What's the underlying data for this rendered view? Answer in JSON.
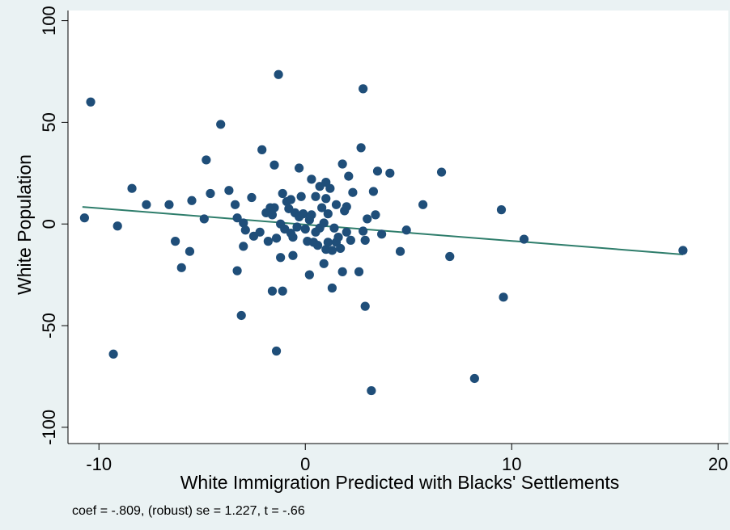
{
  "chart_data": {
    "type": "scatter",
    "xlabel": "White Immigration Predicted with Blacks' Settlements",
    "ylabel": "White Population",
    "xlim": [
      -11.5,
      20.5
    ],
    "ylim": [
      -108,
      105
    ],
    "x_ticks": [
      -10,
      0,
      10,
      20
    ],
    "y_ticks": [
      -100,
      -50,
      0,
      50,
      100
    ],
    "x_tick_labels": [
      "-10",
      "0",
      "10",
      "20"
    ],
    "y_tick_labels": [
      "-100",
      "-50",
      "0",
      "50",
      "100"
    ],
    "grid": false,
    "legend": "none",
    "note": "coef = -.809, (robust) se = 1.227, t = -.66",
    "colors": {
      "background": "#eaf2f3",
      "plot_area": "#ffffff",
      "points": "#1f4e79",
      "fit_line": "#2e7d6b"
    },
    "fit_line": {
      "x": [
        -10.8,
        18.3
      ],
      "y": [
        8.4,
        -15.0
      ]
    },
    "points": [
      {
        "x": -10.7,
        "y": 3.0
      },
      {
        "x": -10.4,
        "y": 60.0
      },
      {
        "x": -9.1,
        "y": -1.0
      },
      {
        "x": -9.3,
        "y": -64.0
      },
      {
        "x": -8.4,
        "y": 17.5
      },
      {
        "x": -7.7,
        "y": 9.5
      },
      {
        "x": -6.6,
        "y": 9.5
      },
      {
        "x": -6.3,
        "y": -8.5
      },
      {
        "x": -6.0,
        "y": -21.5
      },
      {
        "x": -5.6,
        "y": -13.5
      },
      {
        "x": -5.5,
        "y": 11.5
      },
      {
        "x": -4.9,
        "y": 2.5
      },
      {
        "x": -4.8,
        "y": 31.5
      },
      {
        "x": -4.6,
        "y": 15.0
      },
      {
        "x": -4.1,
        "y": 49.0
      },
      {
        "x": -3.7,
        "y": 16.5
      },
      {
        "x": -3.4,
        "y": 9.5
      },
      {
        "x": -3.3,
        "y": 3.0
      },
      {
        "x": -3.3,
        "y": -23.0
      },
      {
        "x": -3.1,
        "y": -45.0
      },
      {
        "x": -3.0,
        "y": -11.0
      },
      {
        "x": -3.0,
        "y": 0.5
      },
      {
        "x": -2.9,
        "y": -3.0
      },
      {
        "x": -2.6,
        "y": 13.0
      },
      {
        "x": -2.5,
        "y": -6.0
      },
      {
        "x": -2.2,
        "y": -4.0
      },
      {
        "x": -2.1,
        "y": 36.5
      },
      {
        "x": -1.9,
        "y": 5.5
      },
      {
        "x": -1.8,
        "y": -8.5
      },
      {
        "x": -1.7,
        "y": 8.0
      },
      {
        "x": -1.6,
        "y": -33.0
      },
      {
        "x": -1.6,
        "y": 4.5
      },
      {
        "x": -1.5,
        "y": 29.0
      },
      {
        "x": -1.5,
        "y": 8.0
      },
      {
        "x": -1.4,
        "y": -7.0
      },
      {
        "x": -1.4,
        "y": -62.5
      },
      {
        "x": -1.3,
        "y": 73.5
      },
      {
        "x": -1.2,
        "y": 0.0
      },
      {
        "x": -1.2,
        "y": -16.5
      },
      {
        "x": -1.1,
        "y": 15.0
      },
      {
        "x": -1.1,
        "y": -33.0
      },
      {
        "x": -1.0,
        "y": -2.5
      },
      {
        "x": -0.9,
        "y": 11.0
      },
      {
        "x": -0.8,
        "y": 7.5
      },
      {
        "x": -0.7,
        "y": -4.5
      },
      {
        "x": -0.7,
        "y": 12.0
      },
      {
        "x": -0.6,
        "y": -15.5
      },
      {
        "x": -0.6,
        "y": -6.5
      },
      {
        "x": -0.5,
        "y": 5.5
      },
      {
        "x": -0.4,
        "y": -1.5
      },
      {
        "x": -0.3,
        "y": 3.5
      },
      {
        "x": -0.3,
        "y": 27.5
      },
      {
        "x": -0.2,
        "y": 13.5
      },
      {
        "x": -0.1,
        "y": 5.0
      },
      {
        "x": 0.0,
        "y": -2.5
      },
      {
        "x": 0.1,
        "y": -8.5
      },
      {
        "x": 0.2,
        "y": -25.0
      },
      {
        "x": 0.2,
        "y": 2.0
      },
      {
        "x": 0.3,
        "y": 22.0
      },
      {
        "x": 0.3,
        "y": 4.5
      },
      {
        "x": 0.4,
        "y": -9.0
      },
      {
        "x": 0.5,
        "y": -4.0
      },
      {
        "x": 0.5,
        "y": 13.5
      },
      {
        "x": 0.6,
        "y": -10.5
      },
      {
        "x": 0.7,
        "y": 18.5
      },
      {
        "x": 0.7,
        "y": -2.0
      },
      {
        "x": 0.8,
        "y": 8.0
      },
      {
        "x": 0.9,
        "y": -19.5
      },
      {
        "x": 0.9,
        "y": 0.5
      },
      {
        "x": 1.0,
        "y": -12.5
      },
      {
        "x": 1.0,
        "y": 20.5
      },
      {
        "x": 1.0,
        "y": 12.5
      },
      {
        "x": 1.1,
        "y": -9.0
      },
      {
        "x": 1.1,
        "y": 5.0
      },
      {
        "x": 1.2,
        "y": 17.5
      },
      {
        "x": 1.3,
        "y": -13.0
      },
      {
        "x": 1.3,
        "y": -31.5
      },
      {
        "x": 1.4,
        "y": -2.0
      },
      {
        "x": 1.5,
        "y": -9.0
      },
      {
        "x": 1.5,
        "y": 9.5
      },
      {
        "x": 1.6,
        "y": -6.5
      },
      {
        "x": 1.7,
        "y": -12.0
      },
      {
        "x": 1.8,
        "y": 29.5
      },
      {
        "x": 1.8,
        "y": -23.5
      },
      {
        "x": 1.9,
        "y": 6.5
      },
      {
        "x": 2.0,
        "y": -4.0
      },
      {
        "x": 2.0,
        "y": 8.5
      },
      {
        "x": 2.1,
        "y": 23.5
      },
      {
        "x": 2.2,
        "y": -8.0
      },
      {
        "x": 2.3,
        "y": 15.5
      },
      {
        "x": 2.6,
        "y": -23.5
      },
      {
        "x": 2.7,
        "y": 37.5
      },
      {
        "x": 2.8,
        "y": -3.5
      },
      {
        "x": 2.8,
        "y": 66.5
      },
      {
        "x": 2.9,
        "y": -8.0
      },
      {
        "x": 2.9,
        "y": -40.5
      },
      {
        "x": 3.0,
        "y": 2.5
      },
      {
        "x": 3.2,
        "y": -82.0
      },
      {
        "x": 3.3,
        "y": 16.0
      },
      {
        "x": 3.4,
        "y": 4.5
      },
      {
        "x": 3.5,
        "y": 26.0
      },
      {
        "x": 3.7,
        "y": -5.0
      },
      {
        "x": 4.1,
        "y": 25.0
      },
      {
        "x": 4.6,
        "y": -13.5
      },
      {
        "x": 4.9,
        "y": -3.0
      },
      {
        "x": 5.7,
        "y": 9.5
      },
      {
        "x": 6.6,
        "y": 25.5
      },
      {
        "x": 7.0,
        "y": -16.0
      },
      {
        "x": 8.2,
        "y": -76.0
      },
      {
        "x": 9.5,
        "y": 7.0
      },
      {
        "x": 9.6,
        "y": -36.0
      },
      {
        "x": 10.6,
        "y": -7.5
      },
      {
        "x": 18.3,
        "y": -13.0
      }
    ]
  }
}
